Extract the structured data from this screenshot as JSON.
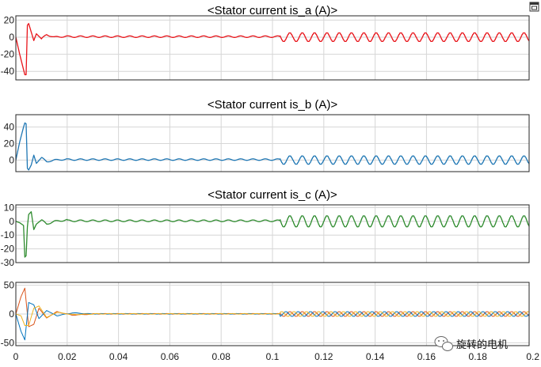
{
  "chart_data": [
    {
      "type": "line",
      "title": "<Stator current is_a (A)>",
      "xlim": [
        0,
        0.2
      ],
      "ylim": [
        -50,
        25
      ],
      "yticks": [
        -40,
        -20,
        0,
        20
      ],
      "grid": true,
      "series": [
        {
          "color": "#e8141a",
          "transient": {
            "x": [
              0,
              0.0015,
              0.003,
              0.0035,
              0.004,
              0.0045,
              0.005,
              0.006,
              0.007,
              0.008,
              0.01,
              0.012,
              0.015,
              0.02
            ],
            "y": [
              0,
              -20,
              -38,
              -44,
              -44,
              14,
              16,
              6,
              -4,
              4,
              -2,
              3,
              0,
              1
            ]
          },
          "steady_amplitude_before": 1.5,
          "load_step_time": 0.103,
          "steady_amplitude_after": 5,
          "ripple_period": 0.0048
        }
      ]
    },
    {
      "type": "line",
      "title": "<Stator current is_b (A)>",
      "xlim": [
        0,
        0.2
      ],
      "ylim": [
        -14,
        55
      ],
      "yticks": [
        0,
        20,
        40
      ],
      "grid": true,
      "series": [
        {
          "color": "#1f77b4",
          "transient": {
            "x": [
              0,
              0.0015,
              0.003,
              0.0035,
              0.004,
              0.0045,
              0.005,
              0.006,
              0.007,
              0.008,
              0.01,
              0.012,
              0.015,
              0.02
            ],
            "y": [
              0,
              22,
              40,
              45,
              44,
              -10,
              -12,
              -6,
              6,
              -4,
              3,
              -2,
              0,
              1
            ]
          },
          "steady_amplitude_before": 1.5,
          "load_step_time": 0.103,
          "steady_amplitude_after": 5,
          "ripple_period": 0.0048
        }
      ]
    },
    {
      "type": "line",
      "title": "<Stator current is_c (A)>",
      "xlim": [
        0,
        0.2
      ],
      "ylim": [
        -30,
        12
      ],
      "yticks": [
        -30,
        -20,
        -10,
        0,
        10
      ],
      "grid": true,
      "series": [
        {
          "color": "#2e8b2e",
          "transient": {
            "x": [
              0,
              0.0015,
              0.003,
              0.0035,
              0.004,
              0.0045,
              0.005,
              0.006,
              0.007,
              0.008,
              0.01,
              0.012,
              0.015,
              0.02
            ],
            "y": [
              0,
              -1,
              -3,
              -26,
              -25,
              -4,
              5,
              7,
              -6,
              -2,
              1,
              -2,
              0,
              1
            ]
          },
          "steady_amplitude_before": 1,
          "load_step_time": 0.103,
          "steady_amplitude_after": 4,
          "ripple_period": 0.0048
        }
      ]
    },
    {
      "type": "line",
      "title": "",
      "xlim": [
        0,
        0.2
      ],
      "ylim": [
        -55,
        55
      ],
      "yticks": [
        -50,
        0,
        50
      ],
      "xticks": [
        0,
        0.02,
        0.04,
        0.06,
        0.08,
        0.1,
        0.12,
        0.14,
        0.16,
        0.18,
        0.2
      ],
      "grid": true,
      "series": [
        {
          "color": "#d95319",
          "transient": {
            "x": [
              0,
              0.002,
              0.0035,
              0.005,
              0.007,
              0.009,
              0.012,
              0.016,
              0.022,
              0.03
            ],
            "y": [
              0,
              30,
              45,
              -22,
              -18,
              10,
              -7,
              4,
              -2,
              0
            ]
          },
          "steady_amplitude_before": 0.8,
          "load_step_time": 0.103,
          "steady_amplitude_after": 4,
          "ripple_period": 0.0048,
          "phase": 0
        },
        {
          "color": "#0072bd",
          "transient": {
            "x": [
              0,
              0.002,
              0.0035,
              0.005,
              0.007,
              0.009,
              0.012,
              0.016,
              0.022,
              0.03
            ],
            "y": [
              0,
              -30,
              -45,
              20,
              16,
              -8,
              6,
              -3,
              2,
              0
            ]
          },
          "steady_amplitude_before": 0.8,
          "load_step_time": 0.103,
          "steady_amplitude_after": 4,
          "ripple_period": 0.0048,
          "phase": 2.09
        },
        {
          "color": "#edb120",
          "transient": {
            "x": [
              0,
              0.002,
              0.0035,
              0.005,
              0.007,
              0.009,
              0.012,
              0.016,
              0.022,
              0.03
            ],
            "y": [
              0,
              -3,
              -20,
              -20,
              10,
              14,
              -6,
              3,
              -1,
              0
            ]
          },
          "steady_amplitude_before": 0.8,
          "load_step_time": 0.103,
          "steady_amplitude_after": 4,
          "ripple_period": 0.0048,
          "phase": 4.19
        }
      ]
    }
  ],
  "watermark": {
    "text": "旋转的电机",
    "icon": "wechat-icon"
  },
  "window": {
    "icon": "restore-icon"
  }
}
